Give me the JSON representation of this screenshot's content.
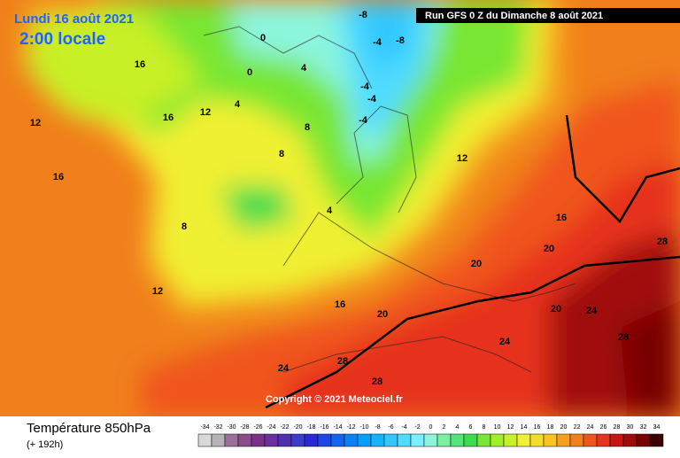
{
  "header": {
    "date": "Lundi 16 août 2021",
    "time": "2:00 locale",
    "run": "Run GFS 0 Z du Dimanche 8 août 2021",
    "copyright": "Copyright © 2021 Meteociel.fr"
  },
  "footer": {
    "title": "Température 850hPa",
    "lead": "(+ 192h)"
  },
  "scale": {
    "labels": [
      -34,
      -32,
      -30,
      -28,
      -26,
      -24,
      -22,
      -20,
      -18,
      -16,
      -14,
      -12,
      -10,
      -8,
      -6,
      -4,
      -2,
      0,
      2,
      4,
      6,
      8,
      10,
      12,
      14,
      16,
      18,
      20,
      22,
      24,
      26,
      28,
      30,
      32,
      34
    ],
    "colors": [
      "#d8d8d8",
      "#b4b4b4",
      "#9a6f9a",
      "#8b4c8b",
      "#7a2f8a",
      "#6a2fa0",
      "#5030b0",
      "#3c3cc8",
      "#2828d8",
      "#1e46e6",
      "#1464f0",
      "#0a82f5",
      "#00a0ff",
      "#14b4ff",
      "#32c8ff",
      "#50dcff",
      "#78f0ff",
      "#8cf5dc",
      "#78f0a0",
      "#50e678",
      "#3cdc50",
      "#78e632",
      "#a0ef28",
      "#c8f028",
      "#f0f032",
      "#f5dc28",
      "#fac31e",
      "#f5a01e",
      "#f07f1c",
      "#f0551e",
      "#e6321e",
      "#c81414",
      "#a00a0a",
      "#780000",
      "#3c0000"
    ]
  },
  "map_labels": [
    "-8",
    "-8",
    "-4",
    "-4",
    "-4",
    "-4",
    "0",
    "0",
    "4",
    "4",
    "4",
    "8",
    "8",
    "8",
    "12",
    "12",
    "12",
    "16",
    "16",
    "16",
    "16",
    "20",
    "20",
    "20",
    "24",
    "24",
    "24",
    "28",
    "28",
    "28",
    "28",
    "20",
    "16",
    "12"
  ]
}
